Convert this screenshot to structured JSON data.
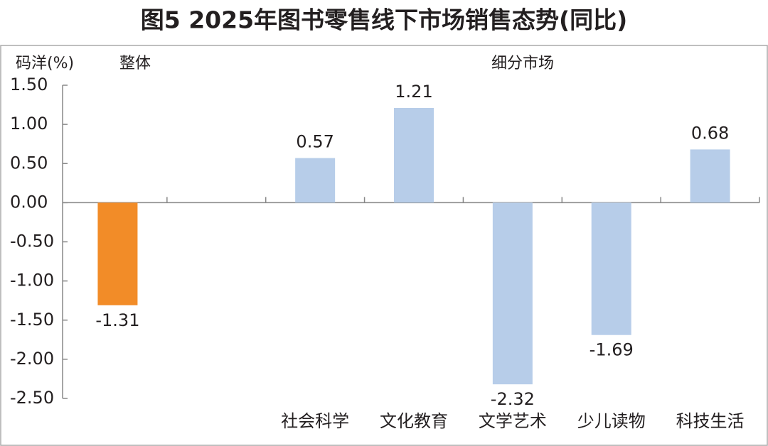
{
  "chart_data": {
    "type": "bar",
    "title": "图5 2025年图书零售线下市场销售态势(同比)",
    "y_label": "码洋(%)",
    "group_labels": [
      "整体",
      "细分市场"
    ],
    "categories": [
      null,
      null,
      "社会科学",
      "文化教育",
      "文学艺术",
      "少儿读物",
      "科技生活"
    ],
    "values": [
      -1.31,
      null,
      0.57,
      1.21,
      -2.32,
      -1.69,
      0.68
    ],
    "colors": [
      "#f28c28",
      null,
      "#b7cde9",
      "#b7cde9",
      "#b7cde9",
      "#b7cde9",
      "#b7cde9"
    ],
    "ylim": [
      -2.5,
      1.5
    ],
    "yticks": [
      {
        "value": 1.5,
        "label": "1.50"
      },
      {
        "value": 1,
        "label": "1.00"
      },
      {
        "value": 0.5,
        "label": "0.50"
      },
      {
        "value": 0,
        "label": "0.00"
      },
      {
        "value": -0.5,
        "label": "-0.50"
      },
      {
        "value": -1,
        "label": "-1.00"
      },
      {
        "value": -1.5,
        "label": "-1.50"
      },
      {
        "value": -2,
        "label": "-2.00"
      },
      {
        "value": -2.5,
        "label": "-2.50"
      }
    ],
    "grid": false
  }
}
